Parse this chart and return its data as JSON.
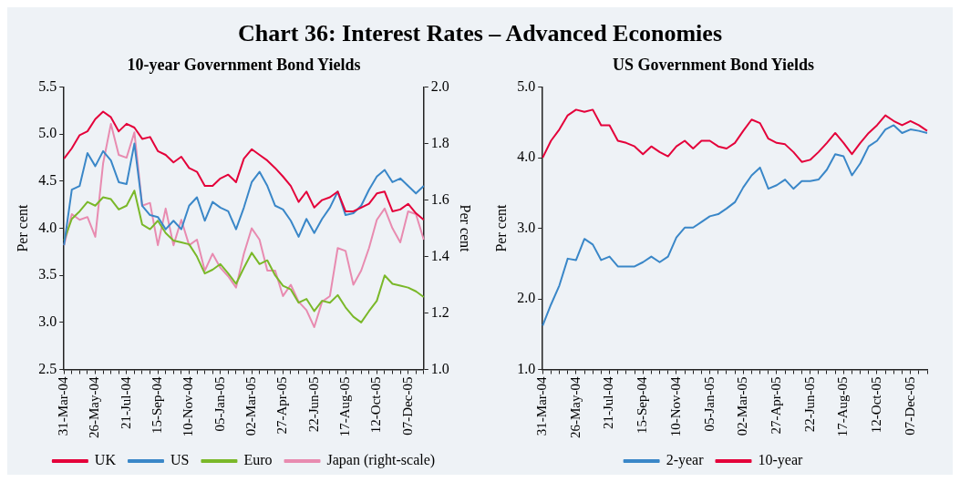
{
  "chart_data": [
    {
      "type": "line",
      "title": "Chart 36: Interest Rates – Advanced Economies",
      "subtitle": "10-year Government Bond Yields",
      "ylabel": "Per cent",
      "y2label": "Per cent",
      "categories": [
        "31-Mar-04",
        null,
        null,
        null,
        "26-May-04",
        null,
        null,
        null,
        "21-Jul-04",
        null,
        null,
        null,
        "15-Sep-04",
        null,
        null,
        null,
        "10-Nov-04",
        null,
        null,
        null,
        "05-Jan-05",
        null,
        null,
        null,
        "02-Mar-05",
        null,
        null,
        null,
        "27-Apr-05",
        null,
        null,
        null,
        "22-Jun-05",
        null,
        null,
        null,
        "17-Aug-05",
        null,
        null,
        null,
        "12-Oct-05",
        null,
        null,
        null,
        "07-Dec-05",
        null,
        null
      ],
      "series": [
        {
          "name": "UK",
          "color": "#e4003a",
          "values": [
            4.74,
            4.85,
            4.99,
            5.03,
            5.16,
            5.24,
            5.18,
            5.03,
            5.11,
            5.07,
            4.95,
            4.97,
            4.82,
            4.78,
            4.7,
            4.76,
            4.64,
            4.6,
            4.45,
            4.45,
            4.53,
            4.57,
            4.49,
            4.74,
            4.84,
            4.78,
            4.72,
            4.64,
            4.55,
            4.45,
            4.28,
            4.39,
            4.22,
            4.3,
            4.33,
            4.39,
            4.18,
            4.18,
            4.22,
            4.26,
            4.37,
            4.39,
            4.18,
            4.2,
            4.26,
            4.16,
            4.09
          ]
        },
        {
          "name": "US",
          "color": "#3a87c8",
          "values": [
            3.82,
            4.41,
            4.45,
            4.8,
            4.66,
            4.82,
            4.72,
            4.49,
            4.47,
            4.9,
            4.24,
            4.14,
            4.12,
            3.99,
            4.08,
            3.99,
            4.24,
            4.33,
            4.08,
            4.28,
            4.22,
            4.18,
            3.99,
            4.22,
            4.49,
            4.6,
            4.45,
            4.24,
            4.2,
            4.08,
            3.91,
            4.1,
            3.95,
            4.1,
            4.22,
            4.39,
            4.14,
            4.16,
            4.24,
            4.41,
            4.55,
            4.62,
            4.49,
            4.53,
            4.45,
            4.37,
            4.45
          ]
        },
        {
          "name": "Euro",
          "color": "#7ab829",
          "values": [
            3.87,
            4.1,
            4.18,
            4.28,
            4.24,
            4.33,
            4.31,
            4.2,
            4.24,
            4.4,
            4.04,
            3.99,
            4.08,
            3.95,
            3.87,
            3.85,
            3.83,
            3.7,
            3.52,
            3.56,
            3.62,
            3.52,
            3.41,
            3.58,
            3.74,
            3.62,
            3.66,
            3.5,
            3.39,
            3.35,
            3.21,
            3.25,
            3.12,
            3.23,
            3.21,
            3.29,
            3.16,
            3.06,
            3.0,
            3.12,
            3.23,
            3.5,
            3.41,
            3.39,
            3.37,
            3.33,
            3.27
          ]
        },
        {
          "name": "Japan (right-scale)",
          "color": "#e88bb0",
          "axis": "y2",
          "values": [
            1.44,
            1.55,
            1.53,
            1.54,
            1.47,
            1.73,
            1.87,
            1.76,
            1.75,
            1.84,
            1.58,
            1.59,
            1.44,
            1.57,
            1.44,
            1.53,
            1.44,
            1.46,
            1.35,
            1.41,
            1.36,
            1.33,
            1.29,
            1.41,
            1.5,
            1.46,
            1.35,
            1.35,
            1.26,
            1.3,
            1.24,
            1.21,
            1.15,
            1.24,
            1.26,
            1.43,
            1.42,
            1.3,
            1.35,
            1.43,
            1.53,
            1.57,
            1.5,
            1.45,
            1.56,
            1.55,
            1.46
          ]
        }
      ],
      "ylim": [
        2.5,
        5.5
      ],
      "yticks": [
        {
          "value": 2.5,
          "label": "2.5"
        },
        {
          "value": 3,
          "label": "3.0"
        },
        {
          "value": 3.5,
          "label": "3.5"
        },
        {
          "value": 4,
          "label": "4.0"
        },
        {
          "value": 4.5,
          "label": "4.5"
        },
        {
          "value": 5,
          "label": "5.0"
        },
        {
          "value": 5.5,
          "label": "5.5"
        }
      ],
      "y2lim": [
        1,
        2
      ],
      "y2ticks": [
        {
          "value": 1,
          "label": "1.0"
        },
        {
          "value": 1.2,
          "label": "1.2"
        },
        {
          "value": 1.4,
          "label": "1.4"
        },
        {
          "value": 1.6,
          "label": "1.6"
        },
        {
          "value": 1.8,
          "label": "1.8"
        },
        {
          "value": 2,
          "label": "2.0"
        }
      ],
      "grid": false,
      "legend": "bottom",
      "marker": "none",
      "line_style": "solid"
    },
    {
      "type": "line",
      "title": "US Government Bond Yields",
      "ylabel": "Per cent",
      "categories": [
        "31-Mar-04",
        null,
        null,
        null,
        "26-May-04",
        null,
        null,
        null,
        "21-Jul-04",
        null,
        null,
        null,
        "15-Sep-04",
        null,
        null,
        null,
        "10-Nov-04",
        null,
        null,
        null,
        "05-Jan-05",
        null,
        null,
        null,
        "02-Mar-05",
        null,
        null,
        null,
        "27-Apr-05",
        null,
        null,
        null,
        "22-Jun-05",
        null,
        null,
        null,
        "17-Aug-05",
        null,
        null,
        null,
        "12-Oct-05",
        null,
        null,
        null,
        "07-Dec-05",
        null,
        null
      ],
      "series": [
        {
          "name": "2-year",
          "color": "#3a87c8",
          "values": [
            1.62,
            1.92,
            2.19,
            2.57,
            2.55,
            2.85,
            2.77,
            2.55,
            2.6,
            2.46,
            2.46,
            2.46,
            2.52,
            2.6,
            2.52,
            2.6,
            2.87,
            3.01,
            3.01,
            3.09,
            3.17,
            3.2,
            3.28,
            3.37,
            3.58,
            3.75,
            3.86,
            3.56,
            3.61,
            3.69,
            3.56,
            3.67,
            3.67,
            3.69,
            3.83,
            4.05,
            4.02,
            3.75,
            3.92,
            4.16,
            4.24,
            4.4,
            4.46,
            4.35,
            4.4,
            4.38,
            4.35
          ]
        },
        {
          "name": "10-year",
          "color": "#e4003a",
          "values": [
            4.0,
            4.24,
            4.4,
            4.6,
            4.68,
            4.65,
            4.68,
            4.46,
            4.46,
            4.24,
            4.21,
            4.16,
            4.05,
            4.16,
            4.08,
            4.02,
            4.16,
            4.24,
            4.13,
            4.24,
            4.24,
            4.16,
            4.13,
            4.21,
            4.38,
            4.54,
            4.49,
            4.27,
            4.21,
            4.19,
            4.08,
            3.94,
            3.97,
            4.08,
            4.21,
            4.35,
            4.21,
            4.05,
            4.21,
            4.35,
            4.46,
            4.6,
            4.52,
            4.46,
            4.52,
            4.46,
            4.38
          ]
        }
      ],
      "ylim": [
        1,
        5
      ],
      "yticks": [
        {
          "value": 1,
          "label": "1.0"
        },
        {
          "value": 2,
          "label": "2.0"
        },
        {
          "value": 3,
          "label": "3.0"
        },
        {
          "value": 4,
          "label": "4.0"
        },
        {
          "value": 5,
          "label": "5.0"
        }
      ],
      "grid": false,
      "legend": "bottom",
      "marker": "none",
      "line_style": "solid"
    }
  ]
}
